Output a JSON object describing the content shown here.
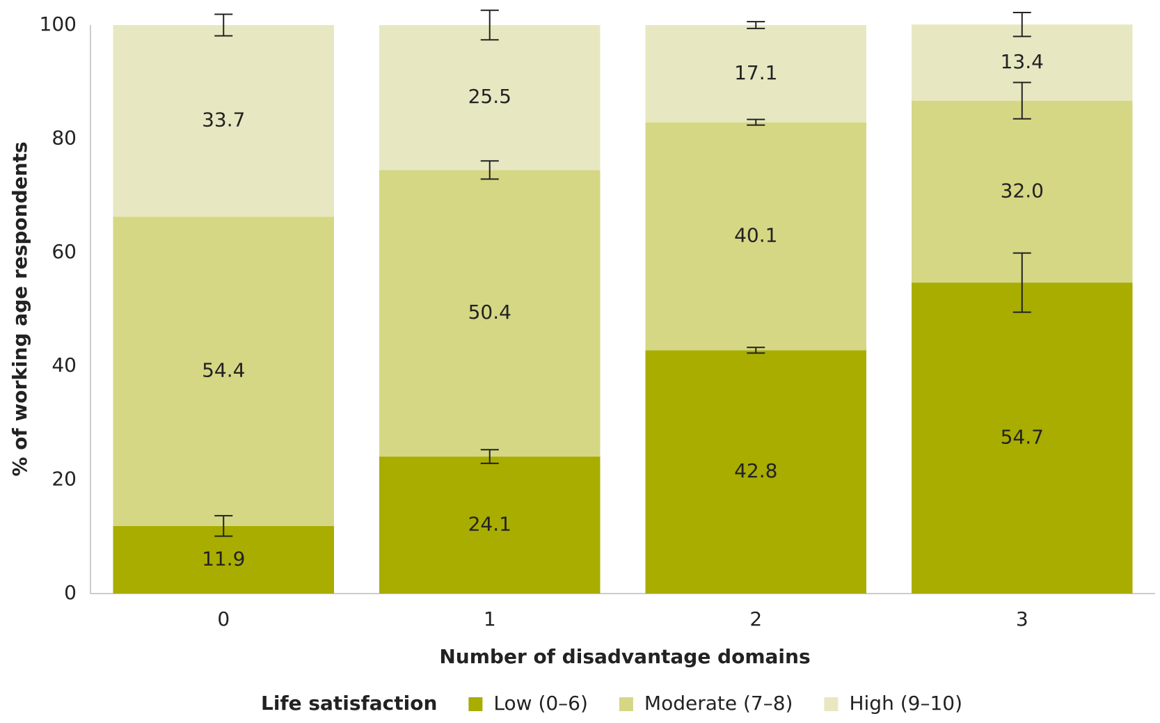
{
  "chart_data": {
    "type": "stacked_bar",
    "x_label": "Number of disadvantage domains",
    "y_label": "% of working age respondents",
    "categories": [
      "0",
      "1",
      "2",
      "3"
    ],
    "series": [
      {
        "name": "Low (0–6)",
        "color": "#a8ad00",
        "values": [
          11.9,
          24.1,
          42.8,
          54.7
        ],
        "errors": [
          1.8,
          1.2,
          0.5,
          5.2
        ]
      },
      {
        "name": "Moderate (7–8)",
        "color": "#d5d784",
        "values": [
          54.4,
          50.4,
          40.1,
          32.0
        ],
        "value_labels": [
          "54.4",
          "50.4",
          "40.1",
          "32.0"
        ],
        "errors": [
          null,
          1.6,
          0.5,
          3.2
        ]
      },
      {
        "name": "High (9–10)",
        "color": "#e7e8c2",
        "values": [
          33.7,
          25.5,
          17.1,
          13.4
        ],
        "errors": [
          1.9,
          2.6,
          0.6,
          2.1
        ]
      }
    ],
    "legend_title": "Life satisfaction",
    "legend_position": "bottom",
    "ylim": [
      0,
      100
    ],
    "yticks": [
      0,
      20,
      40,
      60,
      80,
      100
    ],
    "grid": false
  }
}
